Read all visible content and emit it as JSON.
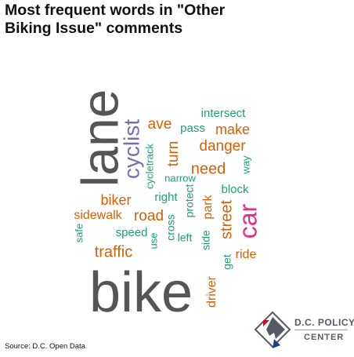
{
  "title_line1": "Most frequent words in \"Other",
  "title_line2": "Biking Issue\" comments",
  "source": "Source: D.C. Open Data",
  "logo": {
    "line1": "D.C. POLICY",
    "line2": "CENTER"
  },
  "chart_data": {
    "type": "wordcloud",
    "title": "Most frequent words in \"Other Biking Issue\" comments",
    "words": [
      {
        "text": "bike",
        "rank": 1,
        "color": "#555555"
      },
      {
        "text": "lane",
        "rank": 2,
        "color": "#555555"
      },
      {
        "text": "car",
        "rank": 3,
        "color": "#e7298a"
      },
      {
        "text": "cyclist",
        "rank": 4,
        "color": "#7570b3"
      },
      {
        "text": "traffic",
        "rank": 5,
        "color": "#d95f02"
      },
      {
        "text": "street",
        "rank": 5,
        "color": "#d95f02"
      },
      {
        "text": "need",
        "rank": 6,
        "color": "#d95f02"
      },
      {
        "text": "danger",
        "rank": 7,
        "color": "#d95f02"
      },
      {
        "text": "turn",
        "rank": 7,
        "color": "#d95f02"
      },
      {
        "text": "road",
        "rank": 7,
        "color": "#d95f02"
      },
      {
        "text": "ave",
        "rank": 8,
        "color": "#d95f02"
      },
      {
        "text": "make",
        "rank": 8,
        "color": "#d95f02"
      },
      {
        "text": "biker",
        "rank": 8,
        "color": "#d95f02"
      },
      {
        "text": "sidewalk",
        "rank": 9,
        "color": "#d95f02"
      },
      {
        "text": "ride",
        "rank": 9,
        "color": "#d95f02"
      },
      {
        "text": "driver",
        "rank": 9,
        "color": "#d95f02"
      },
      {
        "text": "park",
        "rank": 9,
        "color": "#d95f02"
      },
      {
        "text": "intersect",
        "rank": 10,
        "color": "#1b9e77"
      },
      {
        "text": "pass",
        "rank": 10,
        "color": "#1b9e77"
      },
      {
        "text": "block",
        "rank": 10,
        "color": "#1b9e77"
      },
      {
        "text": "speed",
        "rank": 10,
        "color": "#1b9e77"
      },
      {
        "text": "right",
        "rank": 10,
        "color": "#1b9e77"
      },
      {
        "text": "narrow",
        "rank": 11,
        "color": "#1b9e77"
      },
      {
        "text": "cycletrack",
        "rank": 11,
        "color": "#1b9e77"
      },
      {
        "text": "way",
        "rank": 11,
        "color": "#1b9e77"
      },
      {
        "text": "protect",
        "rank": 11,
        "color": "#1b9e77"
      },
      {
        "text": "cross",
        "rank": 11,
        "color": "#1b9e77"
      },
      {
        "text": "left",
        "rank": 11,
        "color": "#1b9e77"
      },
      {
        "text": "side",
        "rank": 11,
        "color": "#1b9e77"
      },
      {
        "text": "get",
        "rank": 11,
        "color": "#1b9e77"
      },
      {
        "text": "use",
        "rank": 11,
        "color": "#1b9e77"
      },
      {
        "text": "safe",
        "rank": 11,
        "color": "#1b9e77"
      }
    ]
  }
}
